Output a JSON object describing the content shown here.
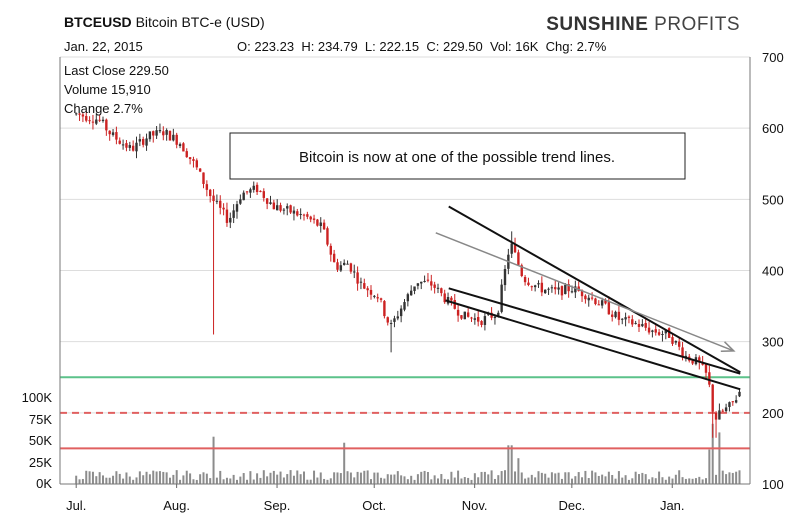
{
  "header": {
    "symbol": "BTCEUSD",
    "name": "Bitcoin BTC-e (USD)",
    "date": "Jan. 22, 2015",
    "ohlc": "O: 223.23  H: 234.79  L: 222.15  C: 229.50  Vol: 16K  Chg: 2.7%"
  },
  "logo": {
    "bold": "SUNSHINE",
    "rest": " PROFITS"
  },
  "info": {
    "last_close": "Last Close 229.50",
    "volume": "Volume 15,910",
    "change": "Change 2.7%"
  },
  "annotation": "Bitcoin is now at one of the possible trend lines.",
  "colors": {
    "up": "#333333",
    "down": "#cc2222",
    "support_green": "#5cc28a",
    "resistance_red": "#e06060",
    "arrow": "#888888",
    "grid": "#dddddd"
  },
  "chart_data": {
    "type": "candlestick",
    "title": "",
    "price_axis": {
      "min": 100,
      "max": 700,
      "ticks": [
        100,
        200,
        300,
        400,
        500,
        600,
        700
      ]
    },
    "volume_axis": {
      "ticks": [
        "0K",
        "25K",
        "50K",
        "75K",
        "100K"
      ]
    },
    "x_labels": [
      "Jul.",
      "Aug.",
      "Sep.",
      "Oct.",
      "Nov.",
      "Dec.",
      "Jan."
    ],
    "horizontal_levels": [
      {
        "price": 250,
        "style": "solid-green"
      },
      {
        "price": 200,
        "style": "dashed-red"
      },
      {
        "price": 150,
        "style": "solid-red"
      }
    ],
    "trend_lines": [
      {
        "from": [
          "2014-10-24",
          490
        ],
        "to": [
          "2015-01-22",
          257
        ]
      },
      {
        "from": [
          "2014-10-24",
          375
        ],
        "to": [
          "2015-01-22",
          255
        ]
      },
      {
        "from": [
          "2014-10-23",
          358
        ],
        "to": [
          "2015-01-22",
          233
        ]
      }
    ],
    "arrow": {
      "from": [
        "2014-10-20",
        453
      ],
      "to": [
        "2015-01-20",
        287
      ]
    },
    "price_path": [
      [
        "2014-07-01",
        620
      ],
      [
        "2014-07-08",
        612
      ],
      [
        "2014-07-12",
        590
      ],
      [
        "2014-07-18",
        570
      ],
      [
        "2014-07-23",
        588
      ],
      [
        "2014-07-28",
        595
      ],
      [
        "2014-08-02",
        580
      ],
      [
        "2014-08-07",
        545
      ],
      [
        "2014-08-12",
        500
      ],
      [
        "2014-08-17",
        470
      ],
      [
        "2014-08-21",
        508
      ],
      [
        "2014-08-26",
        515
      ],
      [
        "2014-08-31",
        490
      ],
      [
        "2014-09-05",
        483
      ],
      [
        "2014-09-10",
        475
      ],
      [
        "2014-09-15",
        460
      ],
      [
        "2014-09-19",
        405
      ],
      [
        "2014-09-23",
        410
      ],
      [
        "2014-09-27",
        380
      ],
      [
        "2014-10-02",
        365
      ],
      [
        "2014-10-06",
        320
      ],
      [
        "2014-10-09",
        345
      ],
      [
        "2014-10-14",
        385
      ],
      [
        "2014-10-19",
        380
      ],
      [
        "2014-10-24",
        355
      ],
      [
        "2014-10-29",
        335
      ],
      [
        "2014-11-03",
        330
      ],
      [
        "2014-11-08",
        340
      ],
      [
        "2014-11-12",
        440
      ],
      [
        "2014-11-16",
        390
      ],
      [
        "2014-11-21",
        375
      ],
      [
        "2014-11-26",
        370
      ],
      [
        "2014-12-01",
        375
      ],
      [
        "2014-12-06",
        365
      ],
      [
        "2014-12-11",
        350
      ],
      [
        "2014-12-16",
        330
      ],
      [
        "2014-12-21",
        325
      ],
      [
        "2014-12-26",
        315
      ],
      [
        "2014-12-31",
        310
      ],
      [
        "2015-01-05",
        280
      ],
      [
        "2015-01-09",
        270
      ],
      [
        "2015-01-12",
        250
      ],
      [
        "2015-01-14",
        190
      ],
      [
        "2015-01-16",
        200
      ],
      [
        "2015-01-19",
        210
      ],
      [
        "2015-01-22",
        229.5
      ]
    ],
    "volume_spikes": [
      [
        "2014-08-12",
        55
      ],
      [
        "2014-09-22",
        48
      ],
      [
        "2014-11-12",
        45
      ],
      [
        "2014-11-14",
        30
      ],
      [
        "2015-01-12",
        40
      ],
      [
        "2015-01-14",
        70
      ],
      [
        "2015-01-15",
        100
      ],
      [
        "2015-01-16",
        60
      ]
    ],
    "last_point": {
      "date": "2015-01-22",
      "open": 223.23,
      "high": 234.79,
      "low": 222.15,
      "close": 229.5
    }
  }
}
